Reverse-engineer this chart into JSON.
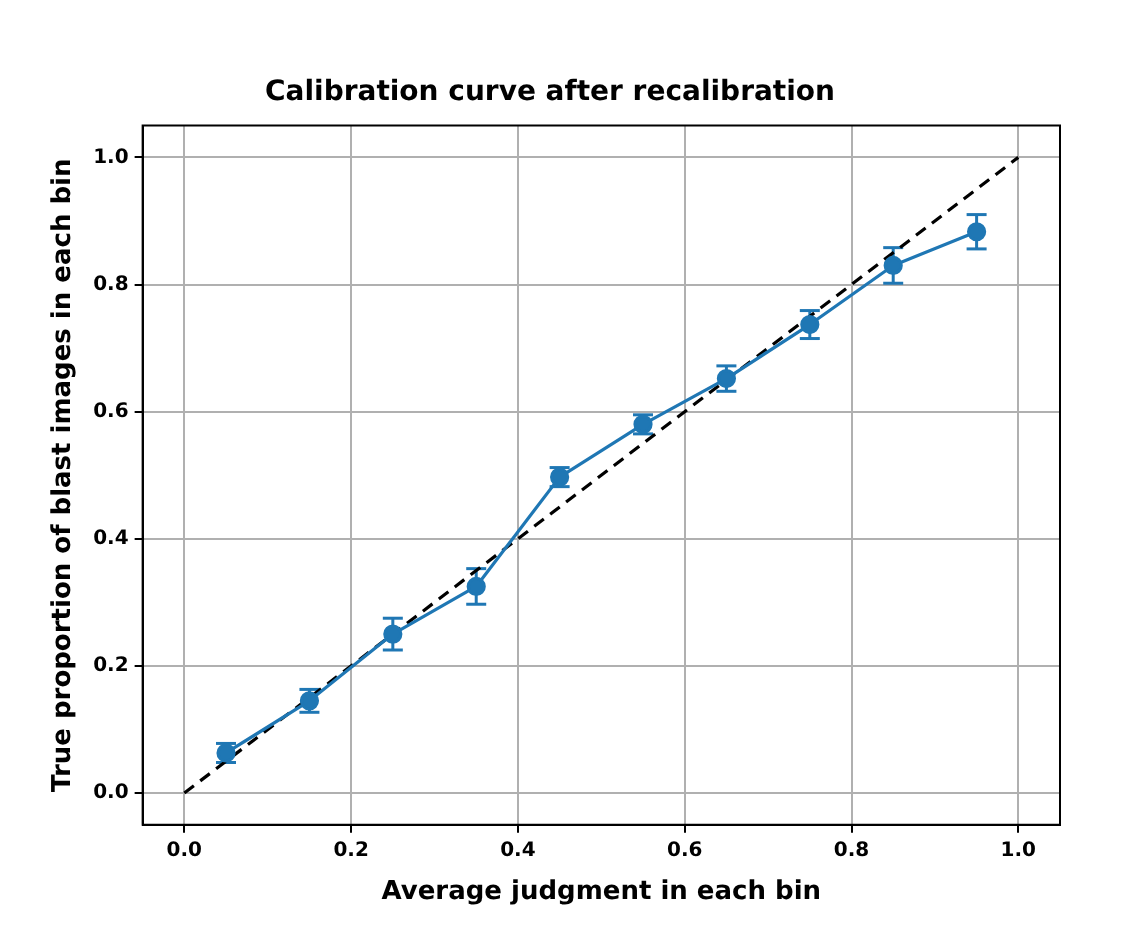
{
  "chart_data": {
    "type": "line",
    "title": "Calibration curve after recalibration",
    "xlabel": "Average judgment in each bin",
    "ylabel": "True proportion of blast images in each bin",
    "xlim": [
      -0.05,
      1.05
    ],
    "ylim": [
      -0.05,
      1.05
    ],
    "xticks": [
      {
        "value": 0,
        "label": "0.0"
      },
      0.2,
      0.4,
      0.6,
      0.8,
      {
        "value": 1,
        "label": "1.0"
      }
    ],
    "yticks": [
      {
        "value": 0,
        "label": "0.0"
      },
      0.2,
      0.4,
      0.6,
      0.8,
      {
        "value": 1,
        "label": "1.0"
      }
    ],
    "grid": true,
    "series": [
      {
        "color": "#1f77b4",
        "marker": "circle",
        "line_style": "solid",
        "x": [
          0.05,
          0.15,
          0.25,
          0.35,
          0.45,
          0.55,
          0.65,
          0.75,
          0.85,
          0.95
        ],
        "values": [
          0.063,
          0.145,
          0.25,
          0.325,
          0.497,
          0.58,
          0.652,
          0.737,
          0.83,
          0.883
        ],
        "errors": [
          0.015,
          0.018,
          0.025,
          0.028,
          0.015,
          0.015,
          0.02,
          0.022,
          0.028,
          0.027
        ]
      },
      {
        "color": "#000000",
        "marker": "none",
        "line_style": "dashed",
        "x": [
          0,
          1
        ],
        "values": [
          0,
          1
        ]
      }
    ]
  }
}
